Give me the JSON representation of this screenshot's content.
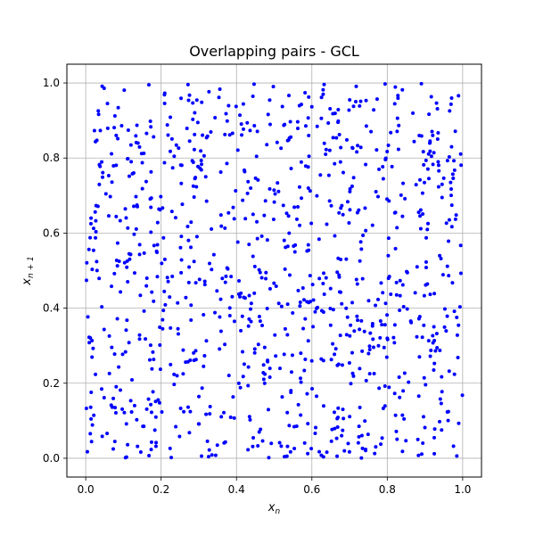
{
  "chart_data": {
    "type": "scatter",
    "title": "Overlapping pairs - GCL",
    "xlabel": {
      "base": "x",
      "sub": "n"
    },
    "ylabel": {
      "base": "x",
      "sub": "n + 1"
    },
    "xlim": [
      -0.05,
      1.05
    ],
    "ylim": [
      -0.05,
      1.05
    ],
    "xticks": [
      0.0,
      0.2,
      0.4,
      0.6,
      0.8,
      1.0
    ],
    "yticks": [
      0.0,
      0.2,
      0.4,
      0.6,
      0.8,
      1.0
    ],
    "xtick_labels": [
      "0.0",
      "0.2",
      "0.4",
      "0.6",
      "0.8",
      "1.0"
    ],
    "ytick_labels": [
      "0.0",
      "0.2",
      "0.4",
      "0.6",
      "0.8",
      "1.0"
    ],
    "grid": true,
    "marker_color": "#0000ff",
    "point_count": 1000,
    "point_distribution": "uniform over [0, 1] x [0, 1]"
  }
}
